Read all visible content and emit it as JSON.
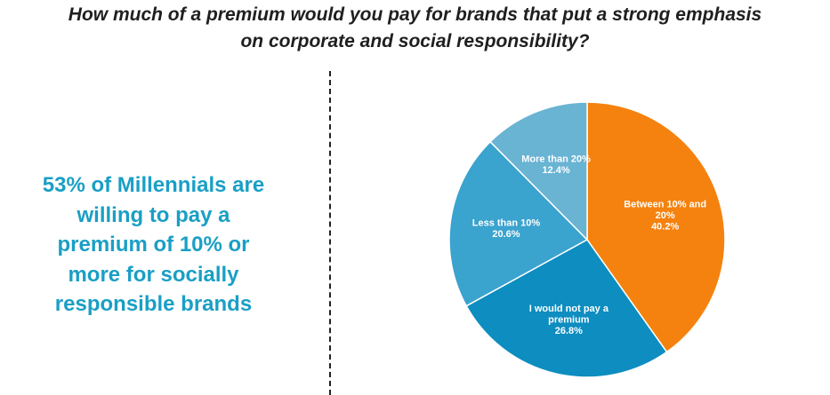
{
  "title": {
    "line1": "How much of a premium would you pay for brands that put a strong emphasis",
    "line2": "on corporate and social responsibility?"
  },
  "callout": {
    "lines": [
      "53% of Millennials are",
      "willing to pay a",
      "premium of 10% or",
      "more for socially",
      "responsible brands"
    ],
    "color": "#1a9fc5"
  },
  "chart_data": {
    "type": "pie",
    "title": "How much of a premium would you pay for brands that put a strong emphasis on corporate and social responsibility?",
    "slices": [
      {
        "label_lines": [
          "Between 10% and",
          "20%"
        ],
        "value": 40.2,
        "value_label": "40.2%",
        "color": "#f5820f"
      },
      {
        "label_lines": [
          "I would not pay a",
          "premium"
        ],
        "value": 26.8,
        "value_label": "26.8%",
        "color": "#0d8dc0"
      },
      {
        "label_lines": [
          "Less than 10%"
        ],
        "value": 20.6,
        "value_label": "20.6%",
        "color": "#3aa3ce"
      },
      {
        "label_lines": [
          "More than 20%"
        ],
        "value": 12.4,
        "value_label": "12.4%",
        "color": "#69b3d3"
      }
    ]
  }
}
